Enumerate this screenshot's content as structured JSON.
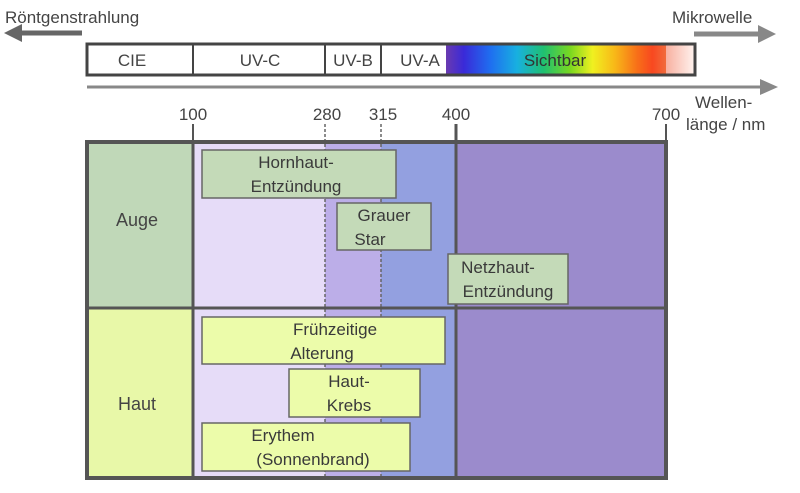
{
  "top_arrows": {
    "left_label": "Röntgenstrahlung",
    "right_label": "Mikrowelle"
  },
  "bands": [
    {
      "label": "CIE"
    },
    {
      "label": "UV-C"
    },
    {
      "label": "UV-B"
    },
    {
      "label": "UV-A"
    },
    {
      "label": "Sichtbar"
    }
  ],
  "wavelength_axis": {
    "unit_line1": "Wellen-",
    "unit_line2": "länge / nm",
    "ticks": [
      "100",
      "280",
      "315",
      "400",
      "700"
    ]
  },
  "rows": [
    {
      "label": "Auge"
    },
    {
      "label": "Haut"
    }
  ],
  "effects": [
    {
      "line1": "Hornhaut-",
      "line2": "Entzündung"
    },
    {
      "line1": "Grauer",
      "line2": "Star"
    },
    {
      "line1": "Netzhaut-",
      "line2": "Entzündung"
    },
    {
      "line1": "Frühzeitige",
      "line2": "Alterung"
    },
    {
      "line1": "Haut-",
      "line2": "Krebs"
    },
    {
      "line1": "Erythem",
      "line2": "(Sonnenbrand)"
    }
  ],
  "colors": {
    "frame": "#555555",
    "auge_row": "#c0d8b8",
    "haut_row": "#e8f8a8",
    "uvc_zone": "#e6dcf8",
    "uvb_zone": "#bcaee8",
    "uva_zone": "#93a0e0",
    "visible_zone": "#9b8bcc",
    "auge_box": "#c4dab8",
    "haut_box": "#ecfcaa"
  }
}
